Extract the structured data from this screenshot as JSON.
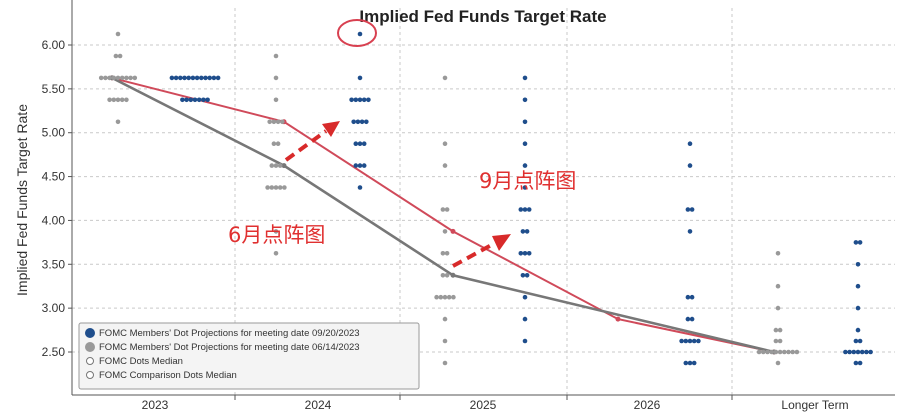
{
  "chart_data": {
    "type": "scatter",
    "title": "Implied Fed Funds Target Rate",
    "ylabel": "Implied Fed Funds Target Rate",
    "xlabel": "",
    "ylim": [
      2.25,
      6.35
    ],
    "yticks": [
      "2.50",
      "3.00",
      "3.50",
      "4.00",
      "4.50",
      "5.00",
      "5.50",
      "6.00"
    ],
    "categories": [
      "2023",
      "2024",
      "2025",
      "2026",
      "Longer Term"
    ],
    "grid": true,
    "legend": {
      "position": "bottom-left",
      "entries": [
        "FOMC Members' Dot Projections for meeting date 09/20/2023",
        "FOMC Members' Dot Projections for meeting date 06/14/2023",
        "FOMC Dots Median",
        "FOMC Comparison Dots Median"
      ]
    },
    "series": [
      {
        "name": "FOMC Members' Dot Projections for meeting date 09/20/2023",
        "color": "#1f4e8c",
        "dots": [
          [
            [
              5.625,
              12
            ],
            [
              5.375,
              7
            ]
          ],
          [
            [
              6.125,
              1
            ],
            [
              5.625,
              1
            ],
            [
              5.375,
              5
            ],
            [
              5.125,
              4
            ],
            [
              4.875,
              3
            ],
            [
              4.625,
              3
            ],
            [
              4.375,
              1
            ]
          ],
          [
            [
              5.625,
              1
            ],
            [
              5.375,
              1
            ],
            [
              5.125,
              1
            ],
            [
              4.875,
              1
            ],
            [
              4.625,
              1
            ],
            [
              4.375,
              1
            ],
            [
              4.125,
              3
            ],
            [
              3.875,
              2
            ],
            [
              3.625,
              3
            ],
            [
              3.375,
              2
            ],
            [
              3.125,
              1
            ],
            [
              2.875,
              1
            ],
            [
              2.625,
              1
            ]
          ],
          [
            [
              4.875,
              1
            ],
            [
              4.625,
              1
            ],
            [
              4.125,
              2
            ],
            [
              3.875,
              1
            ],
            [
              3.125,
              2
            ],
            [
              2.875,
              2
            ],
            [
              2.625,
              5
            ],
            [
              2.375,
              3
            ]
          ],
          [
            [
              3.75,
              2
            ],
            [
              3.5,
              1
            ],
            [
              3.25,
              1
            ],
            [
              3.0,
              1
            ],
            [
              2.75,
              1
            ],
            [
              2.625,
              2
            ],
            [
              2.5,
              7
            ],
            [
              2.375,
              2
            ]
          ]
        ]
      },
      {
        "name": "FOMC Members' Dot Projections for meeting date 06/14/2023",
        "color": "#999999",
        "dots": [
          [
            [
              6.125,
              1
            ],
            [
              5.875,
              2
            ],
            [
              5.625,
              9
            ],
            [
              5.375,
              5
            ],
            [
              5.125,
              1
            ]
          ],
          [
            [
              5.875,
              1
            ],
            [
              5.625,
              1
            ],
            [
              5.375,
              1
            ],
            [
              5.125,
              4
            ],
            [
              4.875,
              2
            ],
            [
              4.625,
              3
            ],
            [
              4.375,
              5
            ],
            [
              3.875,
              1
            ],
            [
              3.625,
              1
            ]
          ],
          [
            [
              5.625,
              1
            ],
            [
              4.875,
              1
            ],
            [
              4.625,
              1
            ],
            [
              4.125,
              2
            ],
            [
              3.875,
              1
            ],
            [
              3.625,
              2
            ],
            [
              3.375,
              2
            ],
            [
              3.125,
              5
            ],
            [
              2.875,
              1
            ],
            [
              2.625,
              1
            ],
            [
              2.375,
              1
            ]
          ],
          [],
          [
            [
              3.625,
              1
            ],
            [
              3.25,
              1
            ],
            [
              3.0,
              1
            ],
            [
              2.75,
              2
            ],
            [
              2.625,
              2
            ],
            [
              2.5,
              10
            ],
            [
              2.375,
              1
            ]
          ]
        ]
      }
    ],
    "medians": [
      {
        "name": "FOMC Dots Median",
        "color": "#d04a5a",
        "values": [
          5.625,
          5.125,
          3.875,
          2.875,
          2.5
        ]
      },
      {
        "name": "FOMC Comparison Dots Median",
        "color": "#777777",
        "values": [
          5.625,
          4.625,
          3.375,
          null,
          2.5
        ]
      }
    ],
    "annotations": [
      {
        "text": "9月点阵图",
        "color": "#e03030"
      },
      {
        "text": "6月点阵图",
        "color": "#e03030"
      }
    ]
  }
}
